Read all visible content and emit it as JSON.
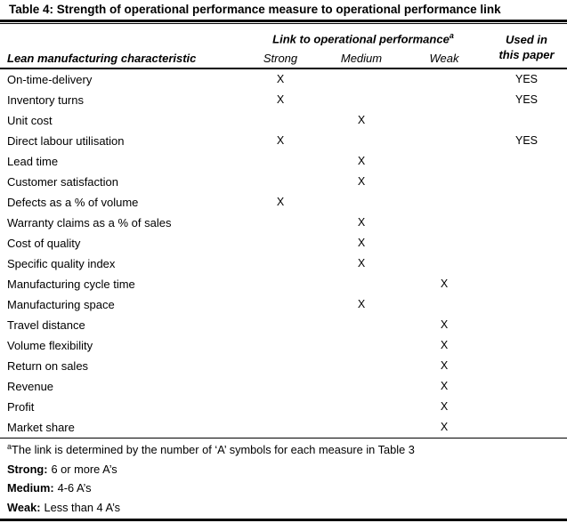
{
  "title": "Table 4: Strength of operational performance measure to operational performance link",
  "table": {
    "characteristic_header": "Lean manufacturing characteristic",
    "link_header": "Link to operational performance",
    "link_header_superscript": "a",
    "strength_columns": [
      "Strong",
      "Medium",
      "Weak"
    ],
    "used_header_line1": "Used in",
    "used_header_line2": "this paper",
    "rows": [
      {
        "label": "On-time-delivery",
        "strong": "X",
        "medium": "",
        "weak": "",
        "used": "YES"
      },
      {
        "label": "Inventory turns",
        "strong": "X",
        "medium": "",
        "weak": "",
        "used": "YES"
      },
      {
        "label": "Unit cost",
        "strong": "",
        "medium": "X",
        "weak": "",
        "used": ""
      },
      {
        "label": "Direct labour utilisation",
        "strong": "X",
        "medium": "",
        "weak": "",
        "used": "YES"
      },
      {
        "label": "Lead time",
        "strong": "",
        "medium": "X",
        "weak": "",
        "used": ""
      },
      {
        "label": "Customer satisfaction",
        "strong": "",
        "medium": "X",
        "weak": "",
        "used": ""
      },
      {
        "label": "Defects as a % of volume",
        "strong": "X",
        "medium": "",
        "weak": "",
        "used": ""
      },
      {
        "label": "Warranty claims as a % of sales",
        "strong": "",
        "medium": "X",
        "weak": "",
        "used": ""
      },
      {
        "label": "Cost of quality",
        "strong": "",
        "medium": "X",
        "weak": "",
        "used": ""
      },
      {
        "label": "Specific quality index",
        "strong": "",
        "medium": "X",
        "weak": "",
        "used": ""
      },
      {
        "label": "Manufacturing cycle time",
        "strong": "",
        "medium": "",
        "weak": "X",
        "used": ""
      },
      {
        "label": "Manufacturing space",
        "strong": "",
        "medium": "X",
        "weak": "",
        "used": ""
      },
      {
        "label": "Travel distance",
        "strong": "",
        "medium": "",
        "weak": "X",
        "used": ""
      },
      {
        "label": "Volume flexibility",
        "strong": "",
        "medium": "",
        "weak": "X",
        "used": ""
      },
      {
        "label": "Return on sales",
        "strong": "",
        "medium": "",
        "weak": "X",
        "used": ""
      },
      {
        "label": "Revenue",
        "strong": "",
        "medium": "",
        "weak": "X",
        "used": ""
      },
      {
        "label": "Profit",
        "strong": "",
        "medium": "",
        "weak": "X",
        "used": ""
      },
      {
        "label": "Market share",
        "strong": "",
        "medium": "",
        "weak": "X",
        "used": ""
      }
    ]
  },
  "footnotes": {
    "superscript": "a",
    "note": "The link is determined by the number of ‘A’ symbols for each measure in Table 3",
    "definitions": [
      {
        "term": "Strong:",
        "text": "6 or more A’s"
      },
      {
        "term": "Medium:",
        "text": "4-6 A’s"
      },
      {
        "term": "Weak:",
        "text": "Less than 4 A’s"
      }
    ]
  },
  "colors": {
    "text": "#000000",
    "background": "#ffffff",
    "rule": "#000000"
  }
}
